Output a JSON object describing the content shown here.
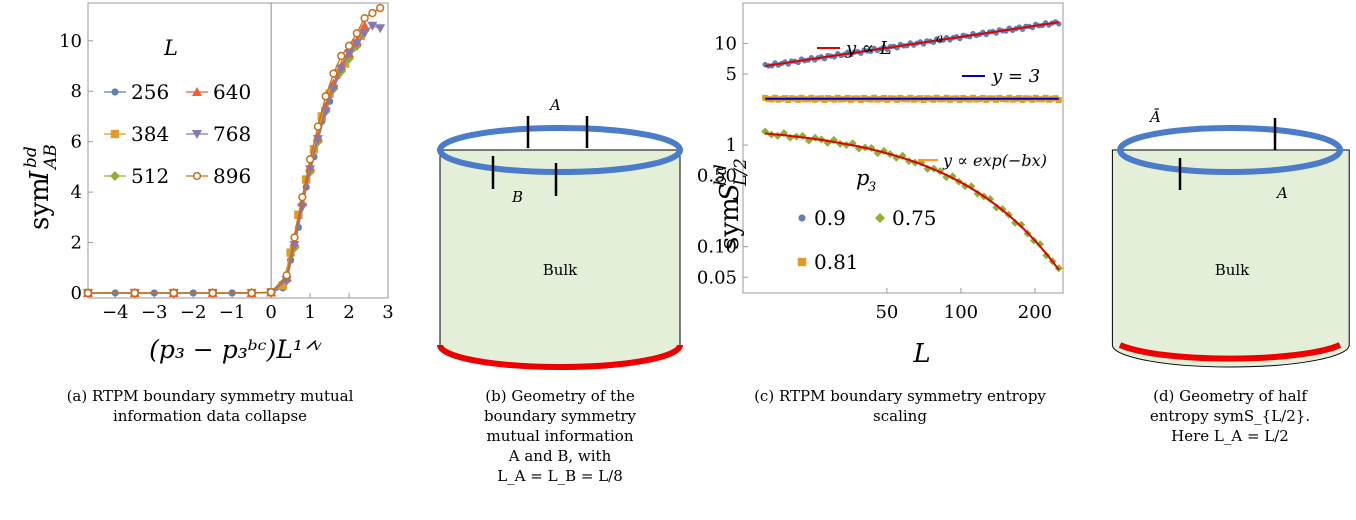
{
  "colors": {
    "c256": "#5e81b5",
    "c384": "#e19c24",
    "c512": "#8fb032",
    "c640": "#eb6235",
    "c768": "#8778b3",
    "c896": "#c56e1a",
    "fit_red": "#e00000",
    "fit_blue": "#0000cc",
    "fit_orange": "#ff9a1a",
    "ring_blue": "#4a7cc9",
    "bulk_fill": "#e4efd9",
    "base_red": "#ee0000"
  },
  "panel_a": {
    "ylabel_main": "sym",
    "ylabel_I": "I",
    "ylabel_sup": "bd",
    "ylabel_sub": "AB",
    "xlabel": "(p₃ − p₃ᵇᶜ)L¹ᐟᵛ",
    "legend_title": "L",
    "legend_labels": [
      "256",
      "640",
      "384",
      "768",
      "512",
      "896"
    ],
    "caption": [
      "(a) RTPM boundary symmetry mutual",
      "information data collapse"
    ]
  },
  "panel_b": {
    "label_A": "A",
    "label_B": "B",
    "bulk": "Bulk",
    "caption": [
      "(b) Geometry of the",
      "boundary symmetry",
      "mutual information",
      "A and B, with",
      "L_A = L_B = L/8"
    ]
  },
  "panel_c": {
    "ylabel_main": "sym",
    "ylabel_S": "S",
    "ylabel_sup": "bd",
    "ylabel_sub": "L/2",
    "xlabel": "L",
    "fit_power": "y ∝ L",
    "fit_power_sup": "a",
    "fit_const": "y = 3",
    "fit_exp": "y ∝ exp(−bx)",
    "legend_title": "p",
    "legend_title_sub": "3",
    "legend_labels": [
      "0.9",
      "0.75",
      "0.81"
    ],
    "caption": [
      "(c) RTPM boundary symmetry entropy",
      "scaling"
    ]
  },
  "panel_d": {
    "label_Abar": "Ā",
    "label_A": "A",
    "bulk": "Bulk",
    "caption": [
      "(d) Geometry of half",
      "entropy symS_{L/2}.",
      "Here L_A = L/2"
    ]
  },
  "chart_data": [
    {
      "type": "line",
      "title": "",
      "xlabel": "(p3 - p3^bc) L^(1/nu)",
      "ylabel": "sym I_AB^bd",
      "xlim": [
        -4.7,
        3.0
      ],
      "ylim": [
        -0.2,
        11.5
      ],
      "xticks": [
        -4,
        -3,
        -2,
        -1,
        0,
        1,
        2,
        3
      ],
      "yticks": [
        0,
        2,
        4,
        6,
        8,
        10
      ],
      "grid": false,
      "legend_position": "upper-left",
      "series": [
        {
          "name": "256",
          "x": [
            -4.7,
            -4.0,
            -3.0,
            -2.0,
            -1.0,
            0.0,
            0.3,
            0.5,
            0.7,
            0.9,
            1.1,
            1.3,
            1.5,
            1.7,
            1.9,
            2.1,
            2.3
          ],
          "y": [
            0,
            0,
            0,
            0,
            0,
            0.02,
            0.2,
            1.3,
            2.6,
            4.2,
            5.4,
            6.8,
            7.6,
            8.6,
            9.1,
            9.7,
            10.2
          ]
        },
        {
          "name": "384",
          "x": [
            -4.7,
            -3.5,
            -2.5,
            -1.5,
            -0.5,
            0.0,
            0.3,
            0.5,
            0.7,
            0.9,
            1.1,
            1.3,
            1.5,
            1.7,
            1.9,
            2.1,
            2.3
          ],
          "y": [
            0,
            0,
            0,
            0,
            0,
            0.03,
            0.3,
            1.6,
            3.1,
            4.5,
            5.7,
            7.0,
            7.9,
            8.7,
            9.1,
            9.8,
            10.2
          ]
        },
        {
          "name": "512",
          "x": [
            -4.7,
            -3.5,
            -2.5,
            -1.5,
            -0.5,
            0.0,
            0.4,
            0.6,
            0.8,
            1.0,
            1.2,
            1.4,
            1.6,
            1.8,
            2.0,
            2.2,
            2.4
          ],
          "y": [
            0,
            0,
            0,
            0,
            0,
            0.02,
            0.5,
            1.8,
            3.5,
            4.8,
            6.0,
            7.2,
            8.1,
            8.8,
            9.3,
            9.8,
            10.4
          ]
        },
        {
          "name": "640",
          "x": [
            -4.7,
            -3.5,
            -2.5,
            -1.5,
            -0.5,
            0.0,
            0.4,
            0.6,
            0.8,
            1.0,
            1.2,
            1.4,
            1.6,
            1.8,
            2.0,
            2.2,
            2.4
          ],
          "y": [
            0,
            0,
            0,
            0,
            0,
            0.02,
            0.6,
            2.0,
            3.6,
            5.0,
            6.2,
            7.4,
            8.3,
            9.0,
            9.5,
            10.0,
            10.6
          ]
        },
        {
          "name": "768",
          "x": [
            -4.7,
            -3.5,
            -2.5,
            -1.5,
            -0.5,
            0.0,
            0.4,
            0.6,
            0.8,
            1.0,
            1.2,
            1.4,
            1.6,
            1.8,
            2.0,
            2.2,
            2.4,
            2.6,
            2.8
          ],
          "y": [
            0,
            0,
            0,
            0,
            0,
            0.02,
            0.5,
            1.9,
            3.4,
            4.9,
            6.1,
            7.2,
            8.1,
            8.9,
            9.5,
            9.9,
            10.3,
            10.6,
            10.5
          ]
        },
        {
          "name": "896",
          "x": [
            -4.7,
            -3.5,
            -2.5,
            -1.5,
            -0.5,
            0.0,
            0.4,
            0.6,
            0.8,
            1.0,
            1.2,
            1.4,
            1.6,
            1.8,
            2.0,
            2.2,
            2.4,
            2.6,
            2.8
          ],
          "y": [
            0,
            0,
            0,
            0,
            0,
            0.03,
            0.7,
            2.2,
            3.8,
            5.3,
            6.6,
            7.8,
            8.7,
            9.4,
            9.8,
            10.3,
            10.9,
            11.1,
            11.3
          ]
        }
      ]
    },
    {
      "type": "scatter",
      "title": "",
      "xlabel": "L",
      "ylabel": "sym S_{L/2}^bd",
      "xscale": "log",
      "yscale": "log",
      "xlim": [
        13,
        260
      ],
      "ylim": [
        0.035,
        25
      ],
      "xticks": [
        50,
        100,
        200
      ],
      "yticks": [
        0.05,
        0.1,
        0.5,
        1,
        5,
        10
      ],
      "ytick_labels": [
        "0.05",
        "0.10",
        "0.50",
        "1",
        "5",
        "10"
      ],
      "grid": false,
      "legend_position": "left",
      "series": [
        {
          "name": "0.9",
          "model": "power",
          "a0": 6.0,
          "ln_exp": 0.36,
          "x_range": [
            16,
            250
          ],
          "n": 90,
          "wobble": 0.035
        },
        {
          "name": "0.81",
          "model": "const",
          "a0": 2.85,
          "x_range": [
            16,
            250
          ],
          "n": 90,
          "wobble": 0.025
        },
        {
          "name": "0.75",
          "model": "exp",
          "a0": 1.3,
          "b": 0.0132,
          "x_range": [
            16,
            250
          ],
          "n": 48,
          "wobble": 0.05
        }
      ],
      "fits": [
        {
          "name": "y ∝ L^a",
          "model": "power",
          "a0": 6.0,
          "ln_exp": 0.36
        },
        {
          "name": "y = 3",
          "model": "const",
          "a0": 2.85
        },
        {
          "name": "y ∝ exp(−bx)",
          "model": "exp",
          "a0": 1.3,
          "b": 0.0132
        }
      ]
    }
  ]
}
